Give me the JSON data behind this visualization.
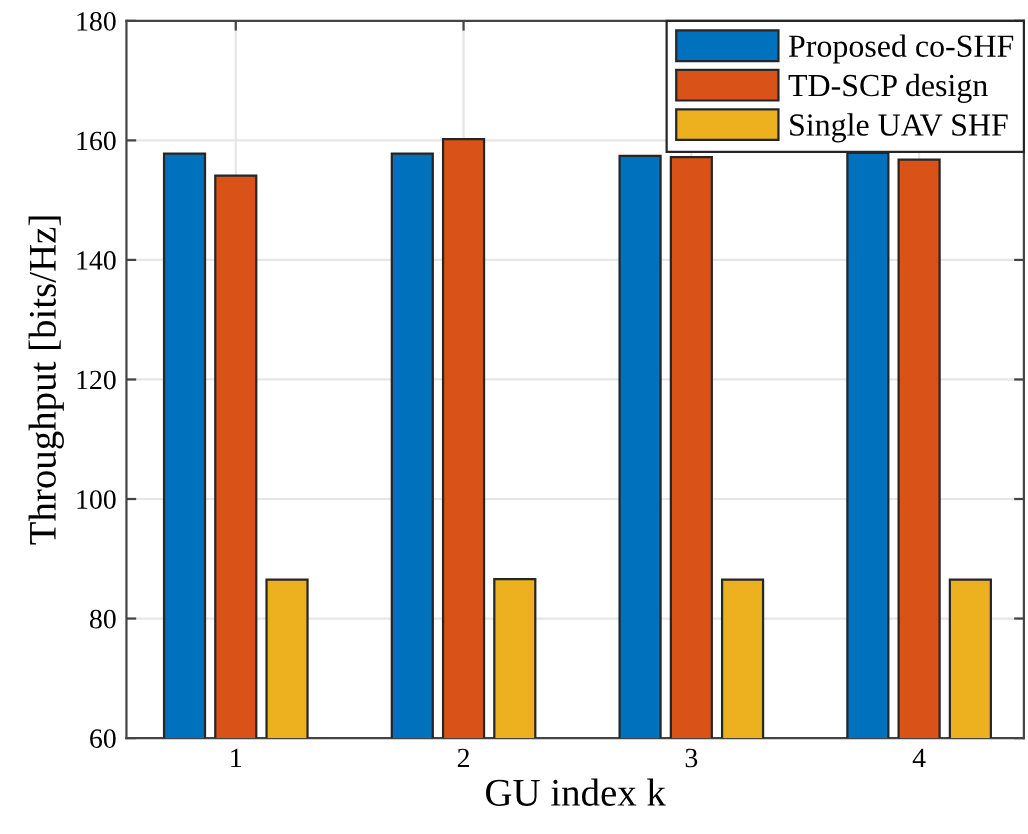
{
  "chart_data": {
    "type": "bar",
    "xlabel": "GU index k",
    "ylabel": "Throughput [bits/Hz]",
    "categories": [
      "1",
      "2",
      "3",
      "4"
    ],
    "series": [
      {
        "name": "Proposed co-SHF",
        "color": "#0072bd",
        "values": [
          157.8,
          157.8,
          157.4,
          157.9
        ]
      },
      {
        "name": "TD-SCP design",
        "color": "#d95319",
        "values": [
          154.1,
          160.2,
          157.2,
          156.8
        ]
      },
      {
        "name": "Single UAV SHF",
        "color": "#edb120",
        "values": [
          86.5,
          86.6,
          86.5,
          86.5
        ]
      }
    ],
    "ylim": [
      60,
      180
    ],
    "yticks": [
      60,
      80,
      100,
      120,
      140,
      160,
      180
    ],
    "grid": true,
    "legend": "top right"
  }
}
